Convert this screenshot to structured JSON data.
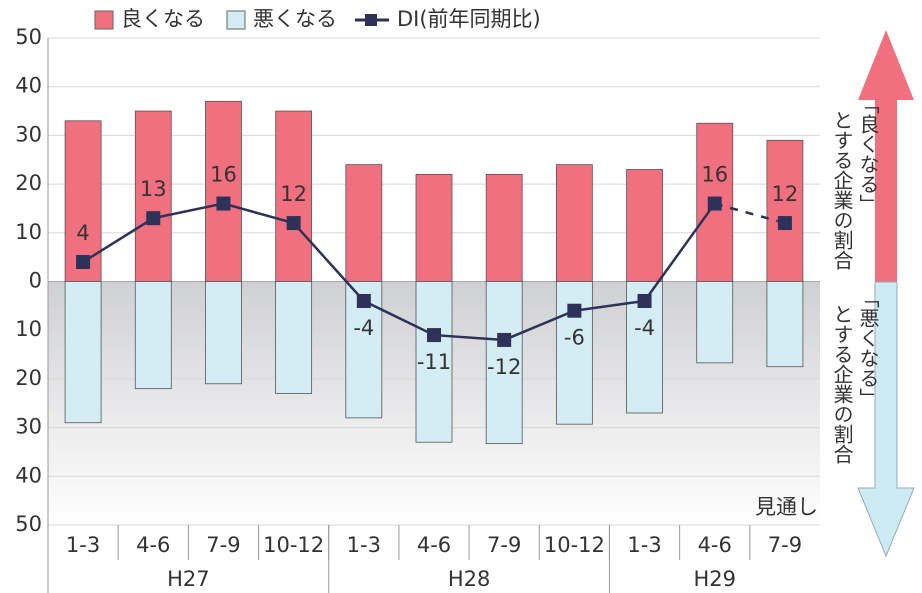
{
  "chart_data": {
    "type": "bar",
    "categories": [
      "1-3",
      "4-6",
      "7-9",
      "10-12",
      "1-3",
      "4-6",
      "7-9",
      "10-12",
      "1-3",
      "4-6",
      "7-9"
    ],
    "groups": [
      {
        "label": "H27",
        "span": 4
      },
      {
        "label": "H28",
        "span": 4
      },
      {
        "label": "H29",
        "span": 3
      }
    ],
    "series": [
      {
        "name": "良くなる",
        "color": "#f07080",
        "values": [
          33,
          35,
          37,
          35,
          24,
          22,
          22,
          24,
          23,
          32.5,
          29
        ]
      },
      {
        "name": "悪くなる",
        "color": "#d4edf4",
        "values": [
          -29,
          -22,
          -21,
          -23,
          -28,
          -33,
          -33.3,
          -29.3,
          -27,
          -16.7,
          -17.5
        ]
      },
      {
        "name": "DI(前年同期比)",
        "type": "line",
        "color": "#2e3158",
        "values": [
          4,
          13,
          16,
          12,
          -4,
          -11,
          -12,
          -6,
          -4,
          16,
          12
        ]
      }
    ],
    "ylim": [
      -50,
      50
    ],
    "yticks": [
      {
        "value": -50,
        "label": "50"
      },
      {
        "value": -40,
        "label": "40"
      },
      {
        "value": -30,
        "label": "30"
      },
      {
        "value": -20,
        "label": "20"
      },
      {
        "value": -10,
        "label": "10"
      },
      0,
      10,
      20,
      30,
      40,
      50
    ],
    "grid": true,
    "forecast_label": "見通し",
    "forecast_start": 9,
    "side_labels": {
      "upper": [
        "「良くなる」",
        "とする企業の割合"
      ],
      "lower": [
        "「悪くなる」",
        "とする企業の割合"
      ]
    }
  }
}
